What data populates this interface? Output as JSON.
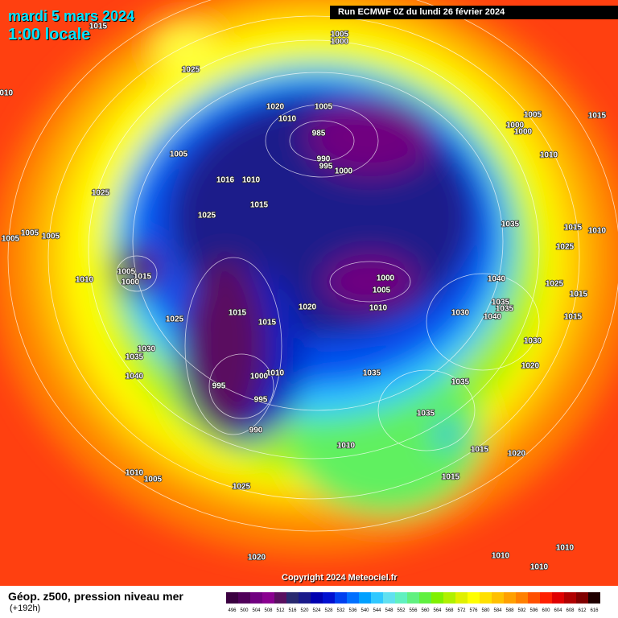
{
  "header": {
    "date": "mardi 5 mars 2024",
    "time": "1:00 locale",
    "run": "Run ECMWF 0Z du lundi 26 février 2024"
  },
  "map": {
    "copyright": "Copyright 2024 Meteociel.fr",
    "pressure_labels": [
      1015,
      1005,
      1000,
      1025,
      1010,
      1020,
      1005,
      1010,
      985,
      990,
      995,
      1000,
      1005,
      1016,
      1010,
      1015,
      1025,
      1025,
      1005,
      1000,
      1000,
      1015,
      1010,
      1035,
      1015,
      1010,
      1025,
      1005,
      1005,
      1005,
      1005,
      1015,
      1000,
      1010,
      1000,
      1005,
      1010,
      1020,
      1040,
      1025,
      1015,
      1035,
      1035,
      1030,
      1040,
      1015,
      1015,
      1015,
      1025,
      1030,
      1035,
      1040,
      1030,
      1020,
      1035,
      1010,
      1000,
      995,
      995,
      1035,
      1035,
      990,
      1010,
      1015,
      1020,
      1010,
      1005,
      1025,
      1015,
      1020,
      1010,
      1010,
      1010
    ]
  },
  "footer": {
    "title": "Géop. z500, pression niveau mer",
    "lead": "(+192h)"
  },
  "legend": {
    "ticks": [
      496,
      500,
      504,
      508,
      512,
      516,
      520,
      524,
      528,
      532,
      536,
      540,
      544,
      548,
      552,
      556,
      560,
      564,
      568,
      572,
      576,
      580,
      584,
      588,
      592,
      596,
      600,
      604,
      608,
      612,
      616
    ],
    "colors": [
      "#3a0040",
      "#50005a",
      "#700080",
      "#8a0090",
      "#5a1060",
      "#2a2a70",
      "#1a1a8a",
      "#0000b0",
      "#0010d0",
      "#0040f0",
      "#0070ff",
      "#00a0ff",
      "#30c8ff",
      "#60e0f0",
      "#60f0c0",
      "#60f080",
      "#60f040",
      "#80f000",
      "#b0f000",
      "#e0f000",
      "#ffff00",
      "#ffe000",
      "#ffc000",
      "#ffa000",
      "#ff8000",
      "#ff5000",
      "#ff2000",
      "#e00000",
      "#b00000",
      "#800000",
      "#200000"
    ]
  }
}
